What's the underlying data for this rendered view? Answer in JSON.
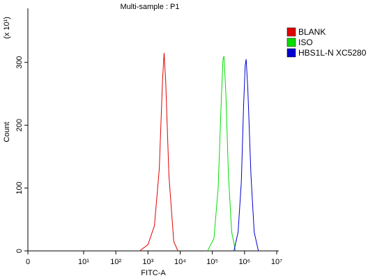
{
  "chart_data": {
    "type": "histogram-overlay",
    "title": "Multi-sample : P1",
    "xlabel": "FITC-A",
    "ylabel": "Count",
    "y_multiplier_label": "(x 10¹)",
    "xscale": "log",
    "xlim": [
      0,
      10000000
    ],
    "xticks": [
      0,
      {
        "value": 10,
        "label": "10¹"
      },
      {
        "value": 100,
        "label": "10²"
      },
      {
        "value": 1000,
        "label": "10³"
      },
      {
        "value": 10000,
        "label": "10⁴"
      },
      {
        "value": 100000,
        "label": "10⁵"
      },
      {
        "value": 1000000,
        "label": "10⁶"
      },
      {
        "value": 10000000,
        "label": "10⁷"
      }
    ],
    "ylim": [
      0,
      386
    ],
    "yticks": [
      0,
      100,
      200,
      300
    ],
    "series": [
      {
        "name": "BLANK",
        "color": "#e00000",
        "x": [
          550,
          1000,
          1585,
          2239,
          2818,
          3162,
          3548,
          4467,
          6310,
          8511
        ],
        "values": [
          0,
          10,
          40,
          130,
          270,
          315,
          270,
          120,
          15,
          0
        ]
      },
      {
        "name": "ISO",
        "color": "#00dd00",
        "x": [
          70795,
          112202,
          151356,
          186209,
          213796,
          229087,
          263027,
          316228,
          398107,
          524807
        ],
        "values": [
          0,
          20,
          100,
          230,
          305,
          310,
          250,
          120,
          30,
          0
        ]
      },
      {
        "name": "HBS1L-N XC5280",
        "color": "#0000d0",
        "x": [
          467735,
          630957,
          794328,
          933254,
          1047129,
          1122018,
          1258925,
          1584893,
          1995262,
          2691535
        ],
        "values": [
          0,
          30,
          110,
          230,
          295,
          305,
          260,
          120,
          30,
          0
        ]
      }
    ]
  }
}
